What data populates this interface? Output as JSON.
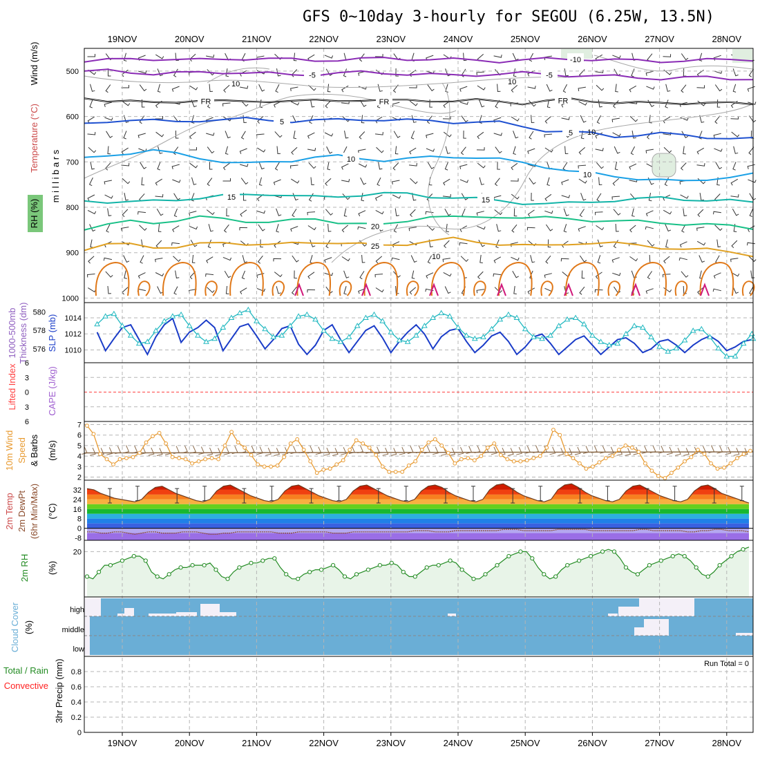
{
  "title": "GFS 0~10day 3-hourly for SEGOU (6.25W, 13.5N)",
  "dates": [
    "19NOV",
    "20NOV",
    "21NOV",
    "22NOV",
    "23NOV",
    "24NOV",
    "25NOV",
    "26NOV",
    "27NOV",
    "28NOV"
  ],
  "colors": {
    "temp5": "#8a2bb5",
    "freezing": "#000000",
    "temp_pos5": "#1e50d0",
    "temp10": "#1aa0e6",
    "temp15": "#12b4a8",
    "temp20": "#18c087",
    "temp25": "#e0a020",
    "temp30": "#e07818",
    "rh_grid": "#a0a0a0",
    "thickness": "#1a3cc8",
    "slp": "#20b8c0",
    "wind10m": "#e89a30",
    "rh2m": "#228b22",
    "cloud": "#6aaed6",
    "precip_rain": "#228b22",
    "precip_conv": "#ff2020",
    "lifted": "#ff4040",
    "cape": "#a060d0"
  },
  "chart_data": [
    {
      "panel": "upper-air",
      "type": "contour",
      "ylabel": "m i l l i b a r s",
      "side_labels": [
        "Wind (m/s)",
        "Temperature (°C)",
        "RH (%)"
      ],
      "yticks": [
        500,
        600,
        700,
        800,
        900,
        1000
      ],
      "ylim": [
        450,
        1010
      ],
      "x_start": "18NOV 12Z",
      "x_step_hours": 3,
      "isotherm_labels": [
        "-10",
        "-5",
        "-5",
        "FR",
        "FR",
        "FR",
        "5",
        "5",
        "10",
        "10",
        "15",
        "15",
        "20",
        "25"
      ],
      "isotherms": [
        {
          "label": "-10",
          "color": "#8a2bb5",
          "levels": [
            480,
            476,
            474,
            473,
            474,
            476,
            474,
            472,
            473,
            475,
            476,
            475,
            474,
            472,
            473,
            474,
            475,
            476,
            478,
            476,
            474,
            473,
            474,
            476,
            477,
            478,
            477,
            476,
            475,
            474
          ]
        },
        {
          "label": "-5",
          "color": "#8a2bb5",
          "levels": [
            500,
            499,
            502,
            506,
            505,
            503,
            502,
            504,
            506,
            508,
            507,
            505,
            503,
            504,
            506,
            508,
            510,
            508,
            506,
            505,
            507,
            509,
            511,
            512,
            514,
            516,
            515,
            514,
            516,
            517
          ]
        },
        {
          "label": "FR",
          "color": "#000000",
          "levels": [
            560,
            565,
            568,
            570,
            566,
            565,
            568,
            566,
            565,
            567,
            566,
            564,
            563,
            566,
            565,
            564,
            566,
            565,
            567,
            570,
            566,
            563,
            566,
            568,
            570,
            572,
            570,
            568,
            572,
            574
          ]
        },
        {
          "label": "5",
          "color": "#1e50d0",
          "levels": [
            615,
            610,
            607,
            610,
            612,
            608,
            607,
            606,
            608,
            610,
            609,
            608,
            606,
            607,
            609,
            610,
            612,
            612,
            614,
            622,
            630,
            634,
            638,
            644,
            640,
            638,
            642,
            645,
            648,
            650
          ]
        },
        {
          "label": "10",
          "color": "#1aa0e6",
          "levels": [
            690,
            685,
            680,
            676,
            682,
            690,
            700,
            705,
            700,
            696,
            690,
            688,
            692,
            696,
            694,
            690,
            688,
            690,
            695,
            702,
            710,
            720,
            726,
            732,
            736,
            740,
            744,
            738,
            732,
            728
          ]
        },
        {
          "label": "15",
          "color": "#12b4a8",
          "levels": [
            786,
            788,
            790,
            786,
            782,
            780,
            776,
            772,
            770,
            775,
            778,
            776,
            772,
            770,
            771,
            776,
            778,
            782,
            786,
            790,
            792,
            792,
            788,
            784,
            782,
            780,
            782,
            784,
            786,
            790
          ]
        },
        {
          "label": "20",
          "color": "#18c087",
          "levels": [
            850,
            838,
            832,
            834,
            828,
            822,
            826,
            830,
            832,
            830,
            826,
            832,
            836,
            840,
            830,
            818,
            822,
            824,
            820,
            822,
            824,
            826,
            828,
            830,
            832,
            834,
            836,
            838,
            842,
            846
          ]
        },
        {
          "label": "25",
          "color": "#e0a020",
          "levels": [
            895,
            884,
            880,
            886,
            890,
            882,
            876,
            880,
            884,
            880,
            876,
            878,
            882,
            884,
            880,
            874,
            870,
            876,
            880,
            884,
            886,
            880,
            878,
            880,
            884,
            888,
            892,
            894,
            898,
            905
          ]
        }
      ],
      "rh_contour_labels": [
        "10",
        "10",
        "10",
        "10"
      ]
    },
    {
      "panel": "thickness-slp",
      "type": "line",
      "ylabel_left": "1000-500mb Thickness (dm)",
      "ylabel_right": "SLP (mb)",
      "yticks_left": [
        576,
        578,
        580
      ],
      "yticks_right": [
        1010,
        1012,
        1014
      ],
      "x_start": "18NOV 12Z",
      "x_step_hours": 6,
      "series": [
        {
          "name": "1000-500mb Thickness (dm)",
          "values": [
            577.8,
            575.8,
            577.1,
            578.3,
            578.6,
            577.0,
            575.4,
            577.3,
            578.6,
            579.3,
            576.7,
            577.8,
            578.3,
            579.1,
            578.3,
            575.8,
            577.1,
            578.4,
            578.7,
            577.4,
            576.0,
            577.0,
            578.2,
            578.5,
            576.5,
            575.4,
            576.4,
            578.0,
            578.6,
            577.0,
            575.6,
            576.8,
            578.0,
            578.5,
            577.2,
            575.6,
            576.8,
            577.8,
            578.6,
            577.6,
            576.0,
            577.3,
            578.0,
            578.2,
            576.8,
            575.6,
            576.4,
            577.4,
            577.8,
            576.8,
            575.4,
            576.2,
            577.3,
            577.6,
            576.6,
            575.4,
            576.2,
            577.0,
            577.4,
            576.4,
            575.4,
            576.2,
            577.0,
            577.2,
            576.6,
            575.6,
            576.0,
            576.8,
            577.0,
            576.4,
            575.6,
            576.4,
            577.0,
            577.4,
            576.8,
            575.8,
            576.2,
            576.8,
            577.0,
            577.2
          ]
        },
        {
          "name": "SLP (mb)",
          "values": [
            1013.2,
            1014.2,
            1014.5,
            1013.0,
            1011.8,
            1010.8,
            1011.0,
            1012.4,
            1013.6,
            1014.2,
            1014.4,
            1013.0,
            1011.8,
            1011.0,
            1011.4,
            1012.8,
            1014.0,
            1014.6,
            1015.0,
            1013.6,
            1012.6,
            1011.6,
            1011.8,
            1013.0,
            1014.2,
            1014.4,
            1013.8,
            1012.4,
            1011.4,
            1011.0,
            1011.6,
            1013.0,
            1014.0,
            1014.4,
            1013.6,
            1012.2,
            1011.2,
            1011.0,
            1011.8,
            1013.0,
            1014.0,
            1014.6,
            1014.2,
            1012.8,
            1011.8,
            1011.4,
            1011.6,
            1012.6,
            1013.8,
            1014.4,
            1014.0,
            1012.6,
            1011.6,
            1011.4,
            1011.8,
            1013.0,
            1013.8,
            1014.0,
            1013.2,
            1011.8,
            1011.0,
            1010.6,
            1010.8,
            1012.0,
            1013.0,
            1012.8,
            1011.6,
            1010.4,
            1009.8,
            1010.2,
            1011.2,
            1012.4,
            1012.6,
            1011.6,
            1010.2,
            1009.2,
            1009.2,
            1010.8,
            1012.0,
            1011.4
          ]
        }
      ]
    },
    {
      "panel": "lifted-cape",
      "type": "line",
      "ylabel_left": "Lifted Index",
      "ylabel_right": "CAPE (J/kg)",
      "yticks": [
        6,
        3,
        0,
        -3,
        -6
      ],
      "series": []
    },
    {
      "panel": "wind10m",
      "type": "line",
      "ylabel": "10m Wind Speed & Barbs (m/s)",
      "yticks": [
        2,
        3,
        4,
        5,
        6,
        7
      ],
      "ylim": [
        1.7,
        7.3
      ],
      "x_start": "18NOV 12Z",
      "x_step_hours": 3,
      "series": [
        {
          "name": "10m Wind Speed",
          "values": [
            6.9,
            6.1,
            4.2,
            3.7,
            3.2,
            3.7,
            3.8,
            3.9,
            4.3,
            5.3,
            5.9,
            6.2,
            5.2,
            3.9,
            3.8,
            3.7,
            3.3,
            3.5,
            3.7,
            3.8,
            3.7,
            5.0,
            6.3,
            5.3,
            4.8,
            4.1,
            3.2,
            3.0,
            3.0,
            3.1,
            3.9,
            5.2,
            5.6,
            4.6,
            3.5,
            2.4,
            2.7,
            2.8,
            3.2,
            3.6,
            4.6,
            5.5,
            5.2,
            4.8,
            4.1,
            3.0,
            2.5,
            2.5,
            2.5,
            3.1,
            3.5,
            4.6,
            5.3,
            5.6,
            5.0,
            4.3,
            3.3,
            3.7,
            3.8,
            3.6,
            4.0,
            4.8,
            5.2,
            4.1,
            3.7,
            3.5,
            3.5,
            3.6,
            3.8,
            4.0,
            4.8,
            6.5,
            6.0,
            4.2,
            3.8,
            3.3,
            2.8,
            3.0,
            3.4,
            3.8,
            4.0,
            4.6,
            5.0,
            4.8,
            4.4,
            3.3,
            2.6,
            2.1,
            1.9,
            2.4,
            2.9,
            3.5,
            3.9,
            4.6,
            4.2,
            3.3,
            2.8,
            2.9,
            3.3,
            3.8,
            4.2,
            4.5
          ]
        }
      ]
    },
    {
      "panel": "temperature2m",
      "type": "area",
      "ylabel": "2m Temp / 2m DewPt (6hr Min/Max) (°C)",
      "yticks": [
        -8,
        0,
        8,
        16,
        24,
        32
      ],
      "ylim": [
        -10,
        40
      ],
      "x_start": "18NOV 12Z",
      "x_step_hours": 3,
      "series": [
        {
          "name": "2m Temp",
          "values": [
            33,
            32,
            29,
            27,
            25,
            24,
            23,
            22,
            24,
            30,
            34,
            35,
            32,
            29,
            27,
            25,
            23,
            22,
            24,
            31,
            35,
            36,
            33,
            30,
            27,
            25,
            23,
            22,
            24,
            31,
            35,
            36,
            33,
            30,
            27,
            25,
            23,
            22,
            24,
            31,
            35,
            36,
            33,
            30,
            27,
            25,
            23,
            22,
            24,
            31,
            35,
            36,
            34,
            30,
            27,
            25,
            23,
            22,
            24,
            32,
            36,
            37,
            34,
            30,
            27,
            25,
            23,
            22,
            24,
            32,
            36,
            37,
            34,
            30,
            27,
            25,
            23,
            22,
            24,
            31,
            35,
            36,
            33,
            30,
            27,
            25,
            23,
            22,
            24,
            31,
            35,
            36,
            33,
            29,
            27,
            25,
            23,
            21
          ]
        },
        {
          "name": "2m DewPt",
          "values": [
            -3,
            -3,
            -4,
            -4,
            -3,
            -3,
            -4,
            -5,
            -4,
            -3,
            -3,
            -4,
            -4,
            -4,
            -3,
            -3,
            -3,
            -4,
            -5,
            -5,
            -4,
            -4,
            -3,
            -3,
            -3,
            -3,
            -3,
            -3,
            -4,
            -4,
            -4,
            -3,
            -3,
            -3,
            -3,
            -3,
            -4,
            -4,
            -4,
            -3,
            -3,
            -3,
            -3,
            -3,
            -3,
            -3,
            -3,
            -3,
            -2,
            -2,
            -2,
            -3,
            -3,
            -3,
            -2,
            -2,
            -2,
            -2,
            -2,
            -2,
            -2,
            -1,
            -1,
            -1,
            -2,
            -2,
            -2,
            -2,
            -2,
            -1,
            -1,
            -1,
            -1,
            -1,
            -2,
            -2,
            -2,
            -2,
            -2,
            -2,
            -2,
            -1,
            -1,
            -2,
            -2,
            -2,
            -2,
            -2,
            -3,
            -3,
            -2,
            -2,
            -1,
            -1,
            -2,
            -2,
            -2,
            -3
          ]
        }
      ]
    },
    {
      "panel": "rh2m",
      "type": "area",
      "ylabel": "2m RH (%)",
      "yticks": [
        20
      ],
      "ylim": [
        0,
        25
      ],
      "x_start": "18NOV 12Z",
      "x_step_hours": 3,
      "series": [
        {
          "name": "2m RH",
          "values": [
            9,
            8,
            11,
            14,
            14,
            15,
            16,
            17,
            18,
            18,
            16,
            11,
            9,
            8,
            10,
            12,
            13,
            13,
            14,
            14,
            14,
            15,
            12,
            9,
            8,
            11,
            13,
            14,
            15,
            15,
            16,
            17,
            17,
            13,
            10,
            8,
            8,
            10,
            11,
            12,
            12,
            13,
            14,
            12,
            9,
            8,
            10,
            11,
            12,
            13,
            14,
            14,
            15,
            14,
            11,
            9,
            9,
            11,
            13,
            14,
            14,
            15,
            16,
            15,
            12,
            10,
            8,
            8,
            10,
            12,
            14,
            16,
            18,
            19,
            20,
            20,
            17,
            13,
            10,
            8,
            9,
            12,
            14,
            15,
            16,
            17,
            18,
            19,
            20,
            21,
            20,
            17,
            13,
            11,
            10,
            12,
            14,
            15,
            16,
            17,
            18,
            19,
            18,
            16,
            13,
            10,
            9,
            11,
            14,
            16,
            18,
            20,
            21,
            22
          ]
        }
      ]
    },
    {
      "panel": "cloud-cover",
      "type": "area",
      "ylabel": "Cloud Cover (%)",
      "layer_labels": [
        "high",
        "middle",
        "low"
      ]
    },
    {
      "panel": "precip",
      "type": "bar",
      "ylabel": "3hr Precip (mm)",
      "side_labels": [
        "Total / Rain",
        "Convective"
      ],
      "yticks": [
        "0",
        "0.2",
        "0.4",
        "0.6",
        "0.8"
      ],
      "ylim": [
        0,
        1
      ],
      "values": [],
      "run_total": "Run Total = 0"
    }
  ]
}
